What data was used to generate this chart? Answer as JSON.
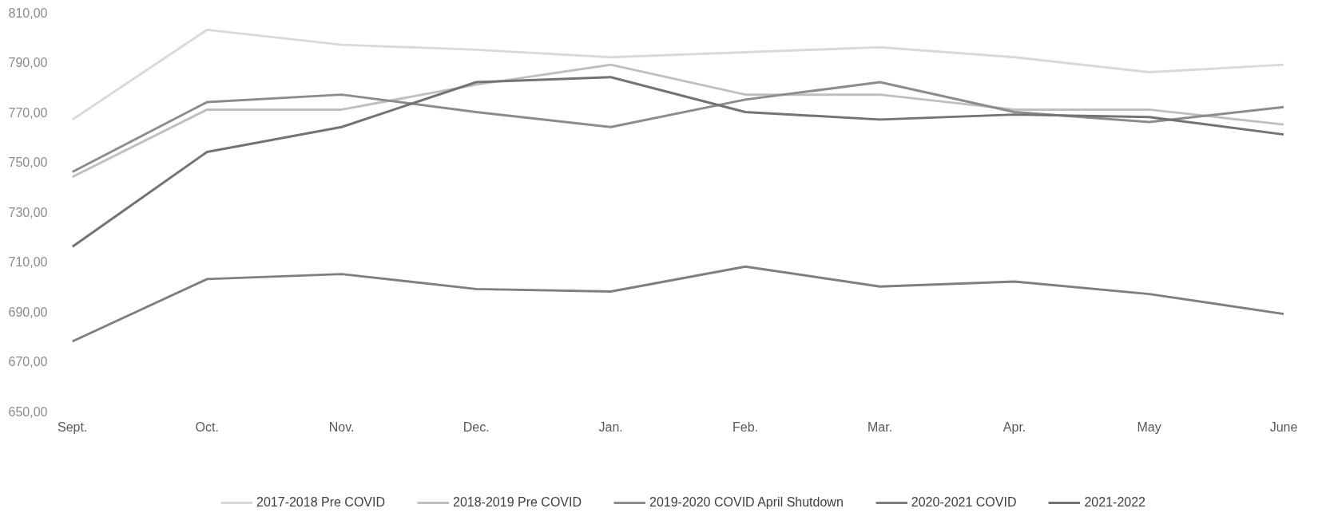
{
  "chart_data": {
    "type": "line",
    "categories": [
      "Sept.",
      "Oct.",
      "Nov.",
      "Dec.",
      "Jan.",
      "Feb.",
      "Mar.",
      "Apr.",
      "May",
      "June"
    ],
    "ylim": [
      650,
      810
    ],
    "yticks": [
      {
        "value": 650,
        "label": "650,00"
      },
      {
        "value": 670,
        "label": "670,00"
      },
      {
        "value": 690,
        "label": "690,00"
      },
      {
        "value": 710,
        "label": "710,00"
      },
      {
        "value": 730,
        "label": "730,00"
      },
      {
        "value": 750,
        "label": "750,00"
      },
      {
        "value": 770,
        "label": "770,00"
      },
      {
        "value": 790,
        "label": "790,00"
      },
      {
        "value": 810,
        "label": "810,00"
      }
    ],
    "legend": "bottom",
    "series": [
      {
        "name": "2017-2018 Pre COVID",
        "color": "#d9d9d9",
        "values": [
          767,
          803,
          797,
          795,
          792,
          794,
          796,
          792,
          786,
          789
        ]
      },
      {
        "name": "2018-2019 Pre COVID",
        "color": "#bfbfbf",
        "values": [
          744,
          771,
          771,
          781,
          789,
          777,
          777,
          771,
          771,
          765
        ]
      },
      {
        "name": "2019-2020 COVID April Shutdown",
        "color": "#8c8c8c",
        "values": [
          746,
          774,
          777,
          770,
          764,
          775,
          782,
          770,
          766,
          772
        ]
      },
      {
        "name": "2020-2021 COVID",
        "color": "#7f7f7f",
        "values": [
          678,
          703,
          705,
          699,
          698,
          708,
          700,
          702,
          697,
          689
        ]
      },
      {
        "name": "2021-2022",
        "color": "#737373",
        "values": [
          716,
          754,
          764,
          782,
          784,
          770,
          767,
          769,
          768,
          761
        ]
      }
    ]
  }
}
